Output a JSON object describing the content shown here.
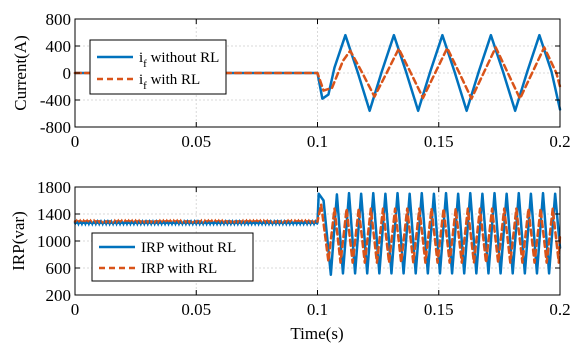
{
  "colors": {
    "series_without": "#0072BD",
    "series_with": "#D95319",
    "grid": "#d9d9d9"
  },
  "chart_data": [
    {
      "type": "line",
      "ylabel": "Current(A)",
      "xlabel": "",
      "xlim": [
        0,
        0.2
      ],
      "ylim": [
        -800,
        800
      ],
      "xticks": [
        0,
        0.05,
        0.1,
        0.15,
        0.2
      ],
      "xtick_labels": [
        "0",
        "0.05",
        "0.1",
        "0.15",
        "0.2"
      ],
      "yticks": [
        -800,
        -400,
        0,
        400,
        800
      ],
      "ytick_labels": [
        "-800",
        "-400",
        "0",
        "400",
        "800"
      ],
      "grid": true,
      "legend_position": "left",
      "series": [
        {
          "name_main": "i",
          "name_sub": "f",
          "name_rest": " without RL",
          "style": "solid",
          "x": [
            0,
            0.1,
            0.102,
            0.1045,
            0.107,
            0.1115,
            0.1165,
            0.1215,
            0.1265,
            0.1315,
            0.1365,
            0.1415,
            0.1465,
            0.1515,
            0.1565,
            0.1615,
            0.1665,
            0.1715,
            0.1765,
            0.1815,
            0.1865,
            0.1915,
            0.1965,
            0.2
          ],
          "y": [
            0,
            0,
            -380,
            -320,
            80,
            560,
            20,
            -560,
            20,
            560,
            20,
            -560,
            20,
            560,
            20,
            -560,
            20,
            560,
            20,
            -560,
            20,
            560,
            20,
            -540
          ]
        },
        {
          "name_main": "i",
          "name_sub": "f",
          "name_rest": " with RL",
          "style": "dashed",
          "x": [
            0,
            0.1,
            0.1025,
            0.106,
            0.1105,
            0.1135,
            0.1185,
            0.1235,
            0.1285,
            0.1335,
            0.1385,
            0.1435,
            0.1485,
            0.1535,
            0.1585,
            0.1635,
            0.1685,
            0.1735,
            0.1785,
            0.1835,
            0.1885,
            0.1935,
            0.1985,
            0.2
          ],
          "y": [
            0,
            0,
            -260,
            -220,
            180,
            330,
            0,
            -350,
            0,
            360,
            0,
            -370,
            0,
            370,
            0,
            -380,
            0,
            380,
            0,
            -380,
            0,
            380,
            0,
            -200
          ]
        }
      ]
    },
    {
      "type": "line",
      "ylabel": "IRP(var)",
      "xlabel": "Time(s)",
      "xlim": [
        0,
        0.2
      ],
      "ylim": [
        200,
        1800
      ],
      "xticks": [
        0,
        0.05,
        0.1,
        0.15,
        0.2
      ],
      "xtick_labels": [
        "0",
        "0.05",
        "0.1",
        "0.15",
        "0.2"
      ],
      "yticks": [
        200,
        600,
        1000,
        1400,
        1800
      ],
      "ytick_labels": [
        "200",
        "600",
        "1000",
        "1400",
        "1800"
      ],
      "grid": true,
      "legend_position": "bottom-left",
      "series": [
        {
          "name_main": "IRP without RL",
          "name_sub": "",
          "name_rest": "",
          "style": "solid",
          "x": [
            0,
            0.1,
            0.1005,
            0.1025,
            0.1055,
            0.108,
            0.1105,
            0.113,
            0.1155,
            0.118,
            0.1205,
            0.123,
            0.1255,
            0.128,
            0.1305,
            0.133,
            0.1355,
            0.138,
            0.1405,
            0.143,
            0.1455,
            0.148,
            0.1505,
            0.153,
            0.1555,
            0.158,
            0.1605,
            0.163,
            0.1655,
            0.168,
            0.1705,
            0.173,
            0.1755,
            0.178,
            0.1805,
            0.183,
            0.1855,
            0.188,
            0.1905,
            0.193,
            0.1955,
            0.198,
            0.2
          ],
          "y": [
            1270,
            1270,
            1700,
            1600,
            500,
            1690,
            520,
            1710,
            520,
            1700,
            520,
            1710,
            520,
            1700,
            520,
            1710,
            520,
            1700,
            520,
            1710,
            520,
            1700,
            520,
            1710,
            520,
            1700,
            520,
            1710,
            520,
            1700,
            520,
            1710,
            520,
            1700,
            520,
            1710,
            520,
            1700,
            520,
            1710,
            520,
            1700,
            900
          ]
        },
        {
          "name_main": "IRP with RL",
          "name_sub": "",
          "name_rest": "",
          "style": "dashed",
          "x": [
            0,
            0.1,
            0.1015,
            0.1045,
            0.107,
            0.1095,
            0.112,
            0.1145,
            0.117,
            0.1195,
            0.122,
            0.1245,
            0.127,
            0.1295,
            0.132,
            0.1345,
            0.137,
            0.1395,
            0.142,
            0.1445,
            0.147,
            0.1495,
            0.152,
            0.1545,
            0.157,
            0.1595,
            0.162,
            0.1645,
            0.167,
            0.1695,
            0.172,
            0.1745,
            0.177,
            0.1795,
            0.182,
            0.1845,
            0.187,
            0.1895,
            0.192,
            0.1945,
            0.197,
            0.1995,
            0.2
          ],
          "y": [
            1290,
            1290,
            1540,
            700,
            1480,
            680,
            1480,
            680,
            1480,
            680,
            1480,
            680,
            1480,
            680,
            1480,
            680,
            1480,
            680,
            1480,
            680,
            1480,
            680,
            1480,
            680,
            1480,
            680,
            1480,
            680,
            1480,
            680,
            1480,
            680,
            1480,
            680,
            1480,
            680,
            1480,
            680,
            1480,
            680,
            1480,
            680,
            1100
          ]
        }
      ]
    }
  ]
}
